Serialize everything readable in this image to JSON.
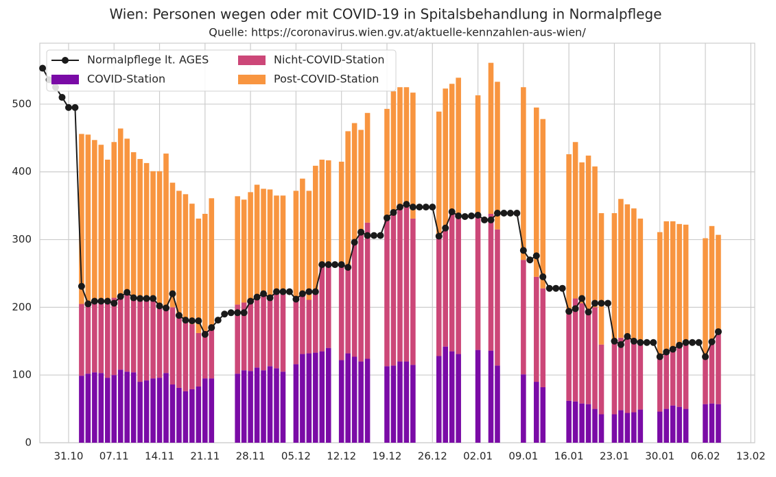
{
  "chart_data": {
    "type": "bar",
    "stacked": true,
    "title": "Wien: Personen wegen oder mit COVID-19 in Spitalsbehandlung in Normalpflege",
    "subtitle": "Quelle: https://coronavirus.wien.gv.at/aktuelle-kennzahlen-aus-wien/",
    "categories": [
      null,
      null,
      null,
      null,
      "31.10",
      null,
      null,
      null,
      null,
      null,
      null,
      "07.11",
      null,
      null,
      null,
      null,
      null,
      null,
      "14.11",
      null,
      null,
      null,
      null,
      null,
      null,
      "21.11",
      null,
      null,
      null,
      null,
      null,
      null,
      "28.11",
      null,
      null,
      null,
      null,
      null,
      null,
      "05.12",
      null,
      null,
      null,
      null,
      null,
      null,
      "12.12",
      null,
      null,
      null,
      null,
      null,
      null,
      "19.12",
      null,
      null,
      null,
      null,
      null,
      null,
      "26.12",
      null,
      null,
      null,
      null,
      null,
      null,
      "02.01",
      null,
      null,
      null,
      null,
      null,
      null,
      "09.01",
      null,
      null,
      null,
      null,
      null,
      null,
      "16.01",
      null,
      null,
      null,
      null,
      null,
      null,
      "23.01",
      null,
      null,
      null,
      null,
      null,
      null,
      "30.01",
      null,
      null,
      null,
      null,
      null,
      null,
      "06.02",
      null,
      null,
      null,
      null,
      null,
      null,
      "13.02"
    ],
    "series": [
      {
        "name": "Normalpflege lt. AGES",
        "type": "line",
        "color": "#1a1a1a",
        "values": [
          553,
          536,
          525,
          510,
          495,
          495,
          231,
          205,
          209,
          209,
          209,
          206,
          216,
          222,
          214,
          213,
          213,
          213,
          202,
          199,
          220,
          188,
          181,
          180,
          180,
          160,
          170,
          181,
          190,
          192,
          192,
          192,
          209,
          215,
          220,
          214,
          223,
          223,
          223,
          212,
          220,
          223,
          223,
          263,
          263,
          263,
          263,
          259,
          296,
          311,
          306,
          306,
          306,
          332,
          340,
          348,
          352,
          348,
          348,
          348,
          348,
          305,
          317,
          341,
          335,
          334,
          335,
          336,
          329,
          329,
          339,
          339,
          339,
          339,
          284,
          270,
          276,
          245,
          228,
          228,
          228,
          194,
          198,
          213,
          193,
          206,
          206,
          206,
          150,
          145,
          157,
          150,
          148,
          148,
          148,
          127,
          134,
          138,
          144,
          148,
          148,
          148,
          127,
          149,
          164,
          null,
          null,
          null,
          null,
          null
        ]
      },
      {
        "name": "COVID-Station",
        "type": "bar",
        "color": "#7a0ba6",
        "values": [
          null,
          null,
          null,
          null,
          null,
          null,
          99,
          102,
          104,
          103,
          96,
          100,
          108,
          105,
          104,
          90,
          92,
          95,
          96,
          103,
          86,
          81,
          76,
          79,
          83,
          95,
          95,
          null,
          null,
          null,
          102,
          107,
          106,
          111,
          107,
          113,
          110,
          105,
          null,
          116,
          131,
          132,
          133,
          135,
          140,
          null,
          122,
          132,
          127,
          120,
          124,
          null,
          null,
          113,
          114,
          120,
          120,
          115,
          null,
          null,
          null,
          128,
          142,
          135,
          131,
          null,
          null,
          137,
          null,
          136,
          114,
          null,
          null,
          null,
          101,
          null,
          90,
          82,
          null,
          null,
          null,
          62,
          61,
          58,
          57,
          50,
          42,
          null,
          42,
          48,
          44,
          45,
          49,
          null,
          null,
          46,
          50,
          55,
          53,
          50,
          null,
          null,
          57,
          58,
          57,
          null,
          null,
          null,
          null,
          null
        ]
      },
      {
        "name": "Nicht-COVID-Station",
        "type": "bar",
        "color": "#cc4778",
        "values": [
          null,
          null,
          null,
          null,
          null,
          null,
          106,
          105,
          106,
          105,
          114,
          114,
          105,
          117,
          114,
          122,
          120,
          115,
          104,
          97,
          114,
          107,
          105,
          96,
          79,
          70,
          75,
          null,
          null,
          null,
          102,
          100,
          104,
          107,
          112,
          101,
          113,
          116,
          null,
          94,
          89,
          79,
          89,
          127,
          123,
          null,
          141,
          127,
          169,
          191,
          201,
          null,
          null,
          219,
          226,
          228,
          232,
          216,
          null,
          null,
          null,
          177,
          175,
          205,
          204,
          null,
          null,
          199,
          null,
          202,
          201,
          null,
          null,
          null,
          169,
          null,
          155,
          146,
          null,
          null,
          null,
          128,
          152,
          148,
          136,
          150,
          103,
          null,
          108,
          107,
          114,
          108,
          96,
          null,
          null,
          79,
          85,
          85,
          92,
          95,
          null,
          null,
          71,
          92,
          105,
          null,
          null,
          null,
          null,
          null
        ]
      },
      {
        "name": "Post-COVID-Station",
        "type": "bar",
        "color": "#f89540",
        "values": [
          null,
          null,
          null,
          null,
          null,
          null,
          251,
          248,
          237,
          232,
          208,
          230,
          251,
          227,
          211,
          207,
          201,
          191,
          201,
          227,
          184,
          184,
          186,
          178,
          169,
          173,
          191,
          null,
          null,
          null,
          160,
          152,
          160,
          163,
          156,
          160,
          142,
          144,
          null,
          162,
          170,
          161,
          187,
          156,
          154,
          null,
          152,
          201,
          176,
          151,
          162,
          null,
          null,
          161,
          179,
          177,
          173,
          186,
          null,
          null,
          null,
          184,
          206,
          190,
          204,
          null,
          null,
          177,
          null,
          223,
          218,
          null,
          null,
          null,
          255,
          null,
          250,
          250,
          null,
          null,
          null,
          236,
          231,
          208,
          231,
          208,
          194,
          null,
          189,
          205,
          194,
          193,
          186,
          null,
          null,
          186,
          192,
          187,
          178,
          177,
          null,
          null,
          174,
          170,
          145,
          null,
          null,
          null,
          null,
          null
        ]
      }
    ],
    "ylim": [
      0,
      590
    ],
    "yticks": [
      0,
      100,
      200,
      300,
      400,
      500
    ],
    "grid": true,
    "legend": "upper left"
  }
}
